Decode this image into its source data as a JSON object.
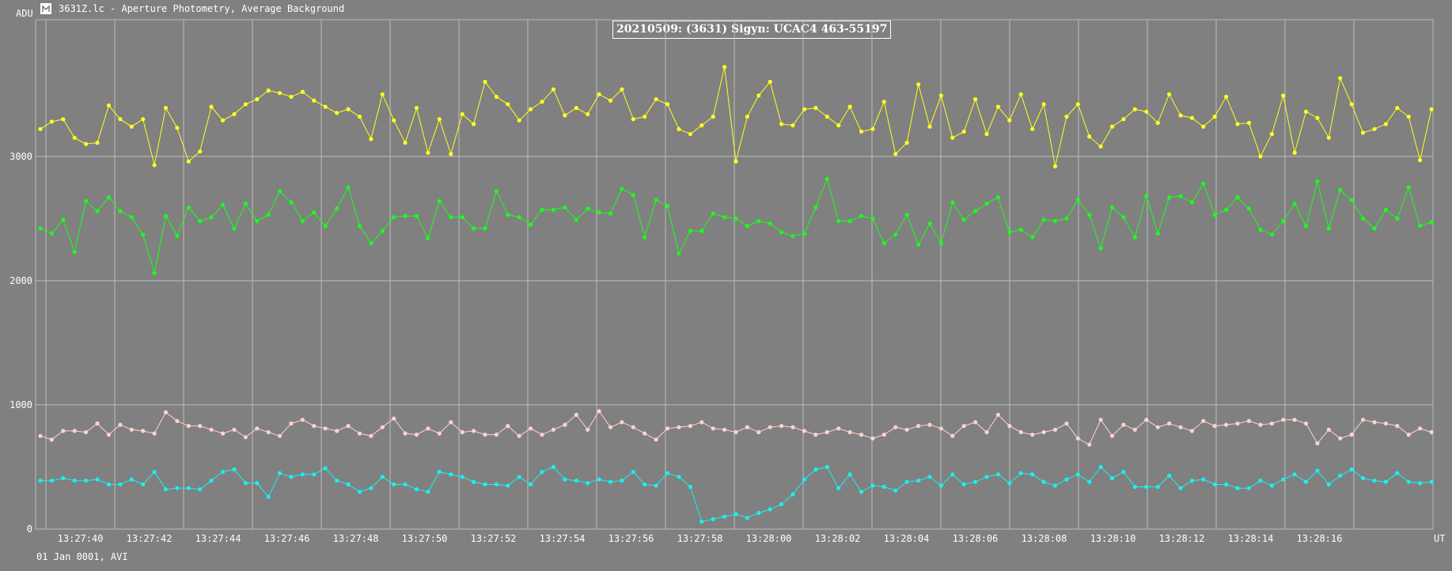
{
  "window": {
    "y_unit": "ADU",
    "title": "3631Z.lc - Aperture Photometry, Average Background",
    "footer": "01 Jan 0001, AVI",
    "x_unit": "UT"
  },
  "icons": {
    "app": "app-logo-icon"
  },
  "colors": {
    "background": "#808080",
    "grid": "#bdbdbd",
    "yellow": "#ffff1e",
    "green": "#19ff19",
    "pink": "#ffd2cf",
    "cyan": "#19f0f0"
  },
  "chart_data": {
    "type": "scatter",
    "title": "20210509: (3631) Sigyn: UCAC4 463-55197",
    "xlabel": "UT",
    "ylabel": "ADU",
    "xlim": [
      "13:27:38.7",
      "13:28:19.3"
    ],
    "ylim": [
      0,
      4100
    ],
    "x_ticks": [
      "13:27:40",
      "13:27:42",
      "13:27:44",
      "13:27:46",
      "13:27:48",
      "13:27:50",
      "13:27:52",
      "13:27:54",
      "13:27:56",
      "13:27:58",
      "13:28:00",
      "13:28:02",
      "13:28:04",
      "13:28:06",
      "13:28:08",
      "13:28:10",
      "13:28:12",
      "13:28:14",
      "13:28:16"
    ],
    "y_ticks": [
      0,
      1000,
      2000,
      3000
    ],
    "grid": true,
    "x_seconds_note_hidden": null,
    "series": [
      {
        "color": "#ffff1e",
        "values": [
          3220,
          3280,
          3300,
          3150,
          3100,
          3110,
          3410,
          3300,
          3240,
          3300,
          2930,
          3390,
          3230,
          2960,
          3040,
          3400,
          3290,
          3340,
          3420,
          3460,
          3530,
          3510,
          3480,
          3520,
          3450,
          3400,
          3350,
          3380,
          3320,
          3140,
          3500,
          3290,
          3110,
          3390,
          3030,
          3300,
          3020,
          3340,
          3260,
          3600,
          3480,
          3420,
          3290,
          3380,
          3440,
          3540,
          3330,
          3390,
          3340,
          3500,
          3450,
          3540,
          3300,
          3320,
          3460,
          3420,
          3220,
          3180,
          3250,
          3320,
          3720,
          2960,
          3320,
          3490,
          3600,
          3260,
          3250,
          3380,
          3390,
          3320,
          3250,
          3400,
          3200,
          3220,
          3440,
          3020,
          3110,
          3580,
          3240,
          3490,
          3150,
          3200,
          3460,
          3180,
          3400,
          3290,
          3500,
          3220,
          3420,
          2920,
          3320,
          3420,
          3160,
          3080,
          3240,
          3300,
          3380,
          3360,
          3270,
          3500,
          3330,
          3310,
          3240,
          3320,
          3480,
          3260,
          3270,
          3000,
          3180,
          3490,
          3030,
          3360,
          3310,
          3150,
          3630,
          3420,
          3190,
          3220,
          3260,
          3390,
          3320,
          2970,
          3380
        ]
      },
      {
        "color": "#19ff19",
        "values": [
          2420,
          2380,
          2490,
          2230,
          2640,
          2560,
          2670,
          2560,
          2510,
          2370,
          2060,
          2520,
          2360,
          2590,
          2480,
          2510,
          2610,
          2420,
          2620,
          2480,
          2530,
          2720,
          2630,
          2480,
          2550,
          2440,
          2580,
          2750,
          2440,
          2300,
          2400,
          2510,
          2520,
          2520,
          2340,
          2640,
          2510,
          2510,
          2420,
          2420,
          2720,
          2530,
          2510,
          2450,
          2570,
          2570,
          2590,
          2490,
          2580,
          2550,
          2540,
          2740,
          2690,
          2350,
          2650,
          2600,
          2220,
          2400,
          2400,
          2540,
          2510,
          2500,
          2440,
          2480,
          2460,
          2390,
          2360,
          2380,
          2590,
          2820,
          2480,
          2480,
          2520,
          2500,
          2300,
          2370,
          2530,
          2290,
          2460,
          2300,
          2630,
          2490,
          2560,
          2620,
          2670,
          2390,
          2410,
          2350,
          2490,
          2480,
          2500,
          2650,
          2530,
          2260,
          2590,
          2510,
          2350,
          2680,
          2380,
          2670,
          2680,
          2630,
          2780,
          2530,
          2570,
          2670,
          2580,
          2410,
          2370,
          2480,
          2620,
          2440,
          2800,
          2420,
          2730,
          2650,
          2500,
          2420,
          2570,
          2500,
          2750,
          2440,
          2470
        ]
      },
      {
        "color": "#ffd2cf",
        "values": [
          750,
          720,
          790,
          790,
          780,
          850,
          760,
          840,
          800,
          790,
          770,
          940,
          870,
          830,
          830,
          800,
          770,
          800,
          740,
          810,
          780,
          750,
          850,
          880,
          830,
          810,
          790,
          830,
          770,
          750,
          820,
          890,
          770,
          760,
          810,
          770,
          860,
          780,
          790,
          760,
          760,
          830,
          750,
          810,
          760,
          800,
          840,
          920,
          800,
          950,
          820,
          860,
          820,
          770,
          720,
          810,
          820,
          830,
          860,
          810,
          800,
          780,
          820,
          780,
          820,
          830,
          820,
          790,
          760,
          780,
          810,
          780,
          760,
          730,
          760,
          820,
          800,
          830,
          840,
          810,
          750,
          830,
          860,
          780,
          920,
          830,
          780,
          760,
          780,
          800,
          850,
          730,
          680,
          880,
          750,
          840,
          800,
          880,
          820,
          850,
          820,
          790,
          870,
          830,
          840,
          850,
          870,
          840,
          850,
          880,
          880,
          850,
          690,
          800,
          730,
          760,
          880,
          860,
          850,
          830,
          760,
          810,
          780
        ]
      },
      {
        "color": "#19f0f0",
        "values": [
          390,
          390,
          410,
          390,
          390,
          400,
          360,
          360,
          400,
          360,
          460,
          320,
          330,
          330,
          320,
          390,
          460,
          480,
          370,
          370,
          260,
          450,
          420,
          440,
          440,
          490,
          390,
          360,
          300,
          330,
          420,
          360,
          360,
          320,
          300,
          460,
          440,
          420,
          380,
          360,
          360,
          350,
          420,
          360,
          460,
          500,
          400,
          390,
          370,
          400,
          380,
          390,
          460,
          360,
          350,
          450,
          420,
          340,
          60,
          80,
          100,
          120,
          90,
          130,
          160,
          200,
          280,
          400,
          480,
          500,
          330,
          440,
          300,
          350,
          340,
          310,
          380,
          390,
          420,
          350,
          440,
          360,
          380,
          420,
          440,
          370,
          450,
          440,
          380,
          350,
          400,
          440,
          380,
          500,
          410,
          460,
          340,
          340,
          340,
          430,
          330,
          390,
          400,
          360,
          360,
          330,
          330,
          390,
          350,
          400,
          440,
          380,
          470,
          360,
          430,
          480,
          410,
          390,
          380,
          450,
          380,
          370,
          380
        ]
      }
    ]
  }
}
